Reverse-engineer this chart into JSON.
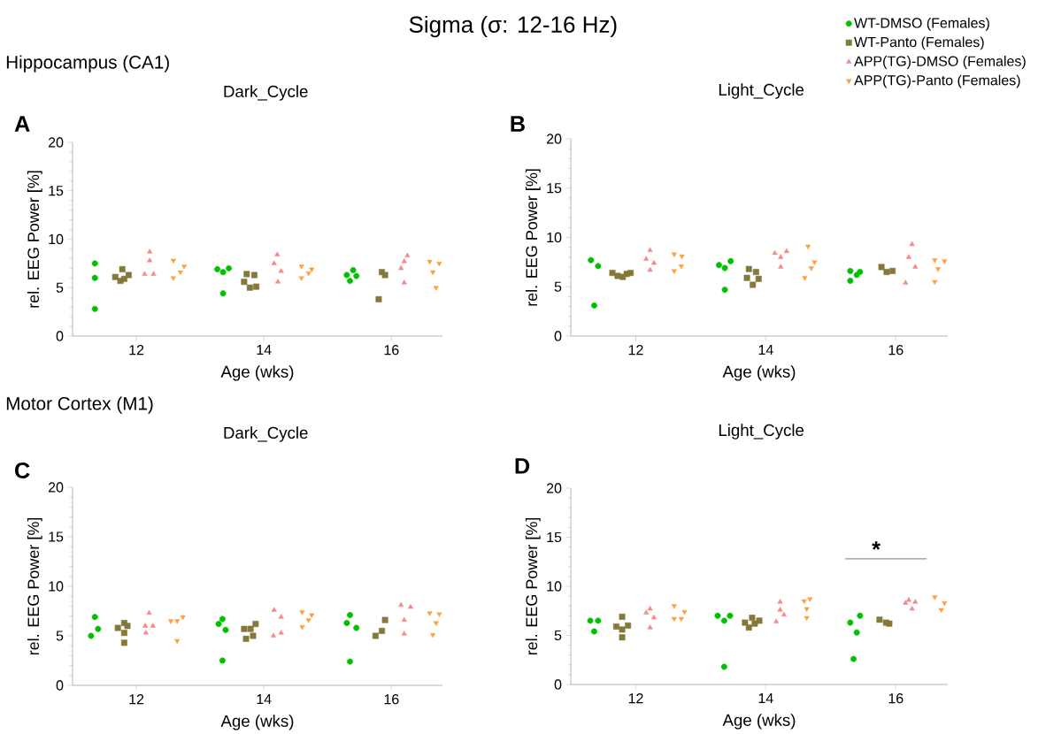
{
  "chart_data": [
    {
      "type": "scatter",
      "title": "Dark_Cycle",
      "xlabel": "Age (wks)",
      "ylabel": "rel. EEG Power [%]",
      "xlim": [
        11,
        16.8
      ],
      "ylim": [
        0,
        20
      ],
      "xticks": [
        12,
        14,
        16
      ],
      "yticks": [
        0,
        5,
        10,
        15,
        20
      ],
      "annotations": [
        "Sigma (σ: 12-16 Hz)",
        "Hippocampus (CA1)",
        "A"
      ],
      "series": [
        {
          "color": "#00c000",
          "marker": "circle",
          "x": [
            11.35,
            11.35,
            11.35,
            13.27,
            13.36,
            13.45,
            13.36,
            15.3,
            15.4,
            15.45,
            15.35
          ],
          "values": [
            7.5,
            6.0,
            2.8,
            6.9,
            6.6,
            7.0,
            4.4,
            6.3,
            6.8,
            6.2,
            5.7
          ]
        },
        {
          "color": "#85783a",
          "marker": "square",
          "x": [
            11.78,
            11.67,
            11.75,
            11.81,
            11.88,
            13.73,
            13.85,
            13.69,
            13.78,
            13.88,
            15.85,
            15.9,
            15.8
          ],
          "values": [
            6.9,
            6.1,
            5.7,
            5.9,
            6.3,
            6.4,
            6.3,
            5.6,
            5.0,
            5.1,
            6.6,
            6.3,
            3.8
          ]
        },
        {
          "color": "#f48a8a",
          "marker": "triangle",
          "x": [
            12.21,
            12.21,
            12.13,
            12.27,
            14.21,
            14.16,
            14.27,
            14.22,
            16.25,
            16.2,
            16.15,
            16.2
          ],
          "values": [
            8.7,
            7.8,
            6.4,
            6.4,
            8.4,
            7.5,
            6.7,
            5.6,
            8.3,
            7.7,
            7.0,
            5.5
          ]
        },
        {
          "color": "#ffa040",
          "marker": "triangle down",
          "x": [
            12.58,
            12.75,
            12.69,
            12.58,
            14.59,
            14.75,
            14.7,
            14.59,
            16.6,
            16.75,
            16.65,
            16.7
          ],
          "values": [
            7.8,
            7.2,
            6.6,
            6.0,
            7.2,
            6.9,
            6.5,
            6.0,
            7.7,
            7.5,
            6.6,
            5.0
          ]
        }
      ]
    },
    {
      "type": "scatter",
      "title": "Light_Cycle",
      "xlabel": "Age (wks)",
      "ylabel": "rel. EEG Power [%]",
      "xlim": [
        11,
        16.8
      ],
      "ylim": [
        0,
        20
      ],
      "xticks": [
        12,
        14,
        16
      ],
      "yticks": [
        0,
        5,
        10,
        15,
        20
      ],
      "annotations": [
        "B"
      ],
      "legend": "top right",
      "series": [
        {
          "name": "WT-DMSO (Females)",
          "color": "#00c000",
          "marker": "circle",
          "x": [
            11.31,
            11.42,
            11.36,
            13.28,
            13.46,
            13.37,
            13.37,
            15.3,
            15.45,
            15.4,
            15.3
          ],
          "values": [
            7.7,
            7.1,
            3.1,
            7.2,
            7.6,
            6.9,
            4.7,
            6.6,
            6.5,
            6.2,
            5.6
          ]
        },
        {
          "name": "WT-Panto (Females)",
          "color": "#85783a",
          "marker": "square",
          "x": [
            11.64,
            11.72,
            11.8,
            11.92,
            11.86,
            13.74,
            13.85,
            13.71,
            13.89,
            13.8,
            15.78,
            15.95,
            15.86
          ],
          "values": [
            6.4,
            6.1,
            6.0,
            6.4,
            6.3,
            6.8,
            6.5,
            5.9,
            5.8,
            5.2,
            7.0,
            6.6,
            6.5
          ]
        },
        {
          "name": "APP(TG)-DMSO (Females)",
          "color": "#f48a8a",
          "marker": "triangle",
          "x": [
            12.22,
            12.16,
            12.28,
            12.22,
            14.14,
            14.32,
            14.23,
            14.23,
            16.25,
            16.2,
            16.3,
            16.15
          ],
          "values": [
            8.7,
            7.8,
            7.4,
            6.7,
            8.4,
            8.6,
            8.0,
            7.0,
            9.3,
            8.0,
            7.0,
            5.4
          ]
        },
        {
          "name": "APP(TG)-Panto (Females)",
          "color": "#ffa040",
          "marker": "triangle down",
          "x": [
            12.59,
            12.71,
            12.7,
            12.59,
            14.65,
            14.75,
            14.7,
            14.6,
            16.6,
            16.75,
            16.65,
            16.6
          ],
          "values": [
            8.3,
            8.1,
            7.1,
            6.6,
            9.1,
            7.5,
            6.9,
            5.9,
            7.7,
            7.6,
            6.8,
            5.5
          ]
        }
      ]
    },
    {
      "type": "scatter",
      "title": "Dark_Cycle",
      "xlabel": "Age (wks)",
      "ylabel": "rel. EEG Power [%]",
      "xlim": [
        11,
        16.8
      ],
      "ylim": [
        0,
        20
      ],
      "xticks": [
        12,
        14,
        16
      ],
      "yticks": [
        0,
        5,
        10,
        15,
        20
      ],
      "annotations": [
        "Motor Cortex (M1)",
        "C"
      ],
      "series": [
        {
          "color": "#00c000",
          "marker": "circle",
          "x": [
            11.35,
            11.4,
            11.29,
            13.35,
            13.29,
            13.4,
            13.35,
            15.35,
            15.3,
            15.45,
            15.35
          ],
          "values": [
            6.9,
            5.7,
            5.0,
            6.7,
            6.2,
            5.6,
            2.5,
            7.1,
            6.3,
            5.8,
            2.4
          ]
        },
        {
          "color": "#85783a",
          "marker": "square",
          "x": [
            11.81,
            11.71,
            11.86,
            11.81,
            11.81,
            13.69,
            13.79,
            13.87,
            13.72,
            13.83,
            15.9,
            15.85,
            15.75
          ],
          "values": [
            6.3,
            5.8,
            6.0,
            5.3,
            4.3,
            5.7,
            5.7,
            6.2,
            4.7,
            5.0,
            6.6,
            5.5,
            5.0
          ]
        },
        {
          "color": "#f48a8a",
          "marker": "triangle",
          "x": [
            12.2,
            12.26,
            12.14,
            12.15,
            14.16,
            14.27,
            14.15,
            14.27,
            16.15,
            16.3,
            16.2,
            16.2
          ],
          "values": [
            7.3,
            6.0,
            6.0,
            5.3,
            7.6,
            6.9,
            5.0,
            5.3,
            8.1,
            7.9,
            6.6,
            5.2
          ]
        },
        {
          "color": "#ffa040",
          "marker": "triangle down",
          "x": [
            12.54,
            12.64,
            12.73,
            12.64,
            14.6,
            14.75,
            14.7,
            14.6,
            16.6,
            16.75,
            16.7,
            16.65
          ],
          "values": [
            6.5,
            6.5,
            6.9,
            4.5,
            7.4,
            7.1,
            6.6,
            5.9,
            7.3,
            7.2,
            6.3,
            5.1
          ]
        }
      ]
    },
    {
      "type": "scatter",
      "title": "Light_Cycle",
      "xlabel": "Age (wks)",
      "ylabel": "rel. EEG Power [%]",
      "xlim": [
        11,
        16.8
      ],
      "ylim": [
        0,
        20
      ],
      "xticks": [
        12,
        14,
        16
      ],
      "yticks": [
        0,
        5,
        10,
        15,
        20
      ],
      "annotations": [
        "D",
        "*"
      ],
      "series": [
        {
          "color": "#00c000",
          "marker": "circle",
          "x": [
            11.3,
            11.42,
            11.36,
            13.26,
            13.45,
            13.36,
            13.36,
            15.3,
            15.45,
            15.4,
            15.35
          ],
          "values": [
            6.5,
            6.5,
            5.4,
            7.0,
            7.0,
            6.5,
            1.8,
            6.3,
            7.0,
            5.3,
            2.6
          ]
        },
        {
          "color": "#85783a",
          "marker": "square",
          "x": [
            11.79,
            11.7,
            11.88,
            11.79,
            11.79,
            13.79,
            13.68,
            13.9,
            13.83,
            13.74,
            15.75,
            15.85,
            15.9
          ],
          "values": [
            6.9,
            5.9,
            6.0,
            5.6,
            4.8,
            6.8,
            6.3,
            6.5,
            6.2,
            5.8,
            6.6,
            6.3,
            6.2
          ]
        },
        {
          "color": "#f48a8a",
          "marker": "triangle",
          "x": [
            12.22,
            12.16,
            12.28,
            12.22,
            14.22,
            14.22,
            14.28,
            14.16,
            16.2,
            16.3,
            16.15,
            16.25
          ],
          "values": [
            7.7,
            7.3,
            6.8,
            5.8,
            8.4,
            7.6,
            7.1,
            6.4,
            8.6,
            8.4,
            8.3,
            7.7
          ]
        },
        {
          "color": "#ffa040",
          "marker": "triangle down",
          "x": [
            12.59,
            12.75,
            12.59,
            12.7,
            14.59,
            14.68,
            14.63,
            14.63,
            16.6,
            16.75,
            16.7
          ],
          "values": [
            8.0,
            7.4,
            6.7,
            6.7,
            8.5,
            8.7,
            7.7,
            6.8,
            8.9,
            8.3,
            7.6
          ]
        }
      ]
    }
  ]
}
